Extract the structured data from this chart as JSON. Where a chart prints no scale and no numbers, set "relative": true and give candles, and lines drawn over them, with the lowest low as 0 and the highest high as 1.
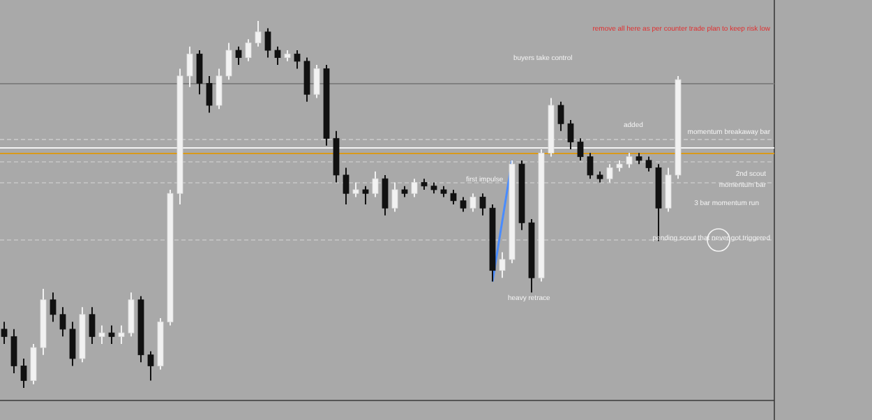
{
  "chart_data": {
    "type": "candlestick",
    "relative": true,
    "categories": [
      null,
      null,
      null,
      null,
      null,
      null,
      null,
      null,
      null,
      null,
      null,
      null,
      null,
      null,
      null,
      null,
      null,
      null,
      null,
      null,
      null,
      null,
      null,
      null,
      null,
      null,
      null,
      null,
      null,
      null,
      null,
      null,
      null,
      null,
      null,
      null,
      null,
      null,
      null,
      null,
      null,
      null,
      null,
      null,
      null,
      null,
      null,
      null,
      null,
      null,
      null,
      null,
      null,
      null,
      null,
      null,
      null,
      null,
      null,
      null,
      null,
      null,
      null,
      null,
      null,
      null,
      null,
      null,
      null,
      null
    ],
    "ohlc": [
      [
        0.16,
        0.18,
        0.12,
        0.14
      ],
      [
        0.14,
        0.16,
        0.04,
        0.06
      ],
      [
        0.06,
        0.08,
        0.0,
        0.02
      ],
      [
        0.02,
        0.12,
        0.01,
        0.11
      ],
      [
        0.11,
        0.27,
        0.09,
        0.24
      ],
      [
        0.24,
        0.26,
        0.18,
        0.2
      ],
      [
        0.2,
        0.22,
        0.14,
        0.16
      ],
      [
        0.16,
        0.18,
        0.06,
        0.08
      ],
      [
        0.08,
        0.22,
        0.07,
        0.2
      ],
      [
        0.2,
        0.22,
        0.12,
        0.14
      ],
      [
        0.14,
        0.17,
        0.12,
        0.15
      ],
      [
        0.15,
        0.17,
        0.12,
        0.14
      ],
      [
        0.14,
        0.17,
        0.12,
        0.15
      ],
      [
        0.15,
        0.26,
        0.14,
        0.24
      ],
      [
        0.24,
        0.25,
        0.07,
        0.09
      ],
      [
        0.09,
        0.1,
        0.02,
        0.06
      ],
      [
        0.06,
        0.19,
        0.05,
        0.18
      ],
      [
        0.18,
        0.54,
        0.17,
        0.53
      ],
      [
        0.53,
        0.87,
        0.5,
        0.85
      ],
      [
        0.85,
        0.93,
        0.82,
        0.91
      ],
      [
        0.91,
        0.92,
        0.8,
        0.83
      ],
      [
        0.83,
        0.85,
        0.75,
        0.77
      ],
      [
        0.77,
        0.87,
        0.76,
        0.85
      ],
      [
        0.85,
        0.94,
        0.84,
        0.92
      ],
      [
        0.92,
        0.93,
        0.88,
        0.9
      ],
      [
        0.9,
        0.95,
        0.89,
        0.94
      ],
      [
        0.94,
        1.0,
        0.93,
        0.97
      ],
      [
        0.97,
        0.98,
        0.9,
        0.92
      ],
      [
        0.92,
        0.93,
        0.88,
        0.9
      ],
      [
        0.9,
        0.92,
        0.89,
        0.91
      ],
      [
        0.91,
        0.92,
        0.87,
        0.89
      ],
      [
        0.89,
        0.9,
        0.78,
        0.8
      ],
      [
        0.8,
        0.88,
        0.79,
        0.87
      ],
      [
        0.87,
        0.88,
        0.66,
        0.68
      ],
      [
        0.68,
        0.7,
        0.56,
        0.58
      ],
      [
        0.58,
        0.6,
        0.5,
        0.53
      ],
      [
        0.53,
        0.56,
        0.52,
        0.54
      ],
      [
        0.54,
        0.55,
        0.5,
        0.53
      ],
      [
        0.53,
        0.59,
        0.52,
        0.57
      ],
      [
        0.57,
        0.58,
        0.47,
        0.49
      ],
      [
        0.49,
        0.56,
        0.48,
        0.54
      ],
      [
        0.54,
        0.55,
        0.52,
        0.53
      ],
      [
        0.53,
        0.57,
        0.52,
        0.56
      ],
      [
        0.56,
        0.57,
        0.54,
        0.55
      ],
      [
        0.55,
        0.56,
        0.53,
        0.54
      ],
      [
        0.54,
        0.55,
        0.52,
        0.53
      ],
      [
        0.53,
        0.54,
        0.5,
        0.51
      ],
      [
        0.51,
        0.52,
        0.48,
        0.49
      ],
      [
        0.49,
        0.53,
        0.48,
        0.52
      ],
      [
        0.52,
        0.53,
        0.47,
        0.49
      ],
      [
        0.49,
        0.5,
        0.29,
        0.32
      ],
      [
        0.32,
        0.37,
        0.3,
        0.35
      ],
      [
        0.35,
        0.62,
        0.34,
        0.61
      ],
      [
        0.61,
        0.62,
        0.43,
        0.45
      ],
      [
        0.45,
        0.46,
        0.26,
        0.3
      ],
      [
        0.3,
        0.65,
        0.29,
        0.64
      ],
      [
        0.64,
        0.79,
        0.63,
        0.77
      ],
      [
        0.77,
        0.78,
        0.7,
        0.72
      ],
      [
        0.72,
        0.73,
        0.65,
        0.67
      ],
      [
        0.67,
        0.68,
        0.62,
        0.63
      ],
      [
        0.63,
        0.64,
        0.57,
        0.58
      ],
      [
        0.58,
        0.59,
        0.56,
        0.57
      ],
      [
        0.57,
        0.61,
        0.56,
        0.6
      ],
      [
        0.6,
        0.62,
        0.59,
        0.61
      ],
      [
        0.61,
        0.64,
        0.6,
        0.63
      ],
      [
        0.63,
        0.64,
        0.61,
        0.62
      ],
      [
        0.62,
        0.63,
        0.59,
        0.6
      ],
      [
        0.6,
        0.61,
        0.4,
        0.49
      ],
      [
        0.49,
        0.6,
        0.48,
        0.58
      ],
      [
        0.58,
        0.85,
        0.57,
        0.84
      ]
    ],
    "series": [
      {
        "type": "line",
        "color": "#4a8cff",
        "values": [
          null,
          null,
          null,
          null,
          null,
          null,
          null,
          null,
          null,
          null,
          null,
          null,
          null,
          null,
          null,
          null,
          null,
          null,
          null,
          null,
          null,
          null,
          null,
          null,
          null,
          null,
          null,
          null,
          null,
          null,
          null,
          null,
          null,
          null,
          null,
          null,
          null,
          null,
          null,
          null,
          null,
          null,
          null,
          null,
          null,
          null,
          null,
          null,
          null,
          null,
          0.29,
          0.455,
          0.62,
          null,
          null,
          null,
          null,
          null,
          null,
          null,
          null,
          null,
          null,
          null,
          null,
          null,
          null,
          null,
          null,
          null
        ]
      }
    ],
    "ref_lines": [
      {
        "axis": "y",
        "value": 0.829,
        "color": "#808080",
        "line_style": "solid"
      },
      {
        "axis": "y",
        "value": 0.677,
        "color": "#c8c8c8",
        "line_style": "dashed"
      },
      {
        "axis": "y",
        "value": 0.654,
        "color": "#f4f4f4",
        "line_style": "solid"
      },
      {
        "axis": "y",
        "value": 0.639,
        "color": "#d99a1a",
        "line_style": "solid"
      },
      {
        "axis": "y",
        "value": 0.616,
        "color": "#c8c8c8",
        "line_style": "dashed"
      },
      {
        "axis": "y",
        "value": 0.559,
        "color": "#c8c8c8",
        "line_style": "dashed"
      },
      {
        "axis": "y",
        "value": 0.403,
        "color": "#c8c8c8",
        "line_style": "dashed"
      }
    ],
    "annotations": [
      "remove all here as per counter trade plan to keep risk low",
      "buyers take control",
      "added",
      "momentum breakaway bar",
      "first impulse",
      "2nd scout",
      "momentum bar",
      "3 bar momentum run",
      "pending scout that never got triggered",
      "heavy retrace"
    ]
  }
}
